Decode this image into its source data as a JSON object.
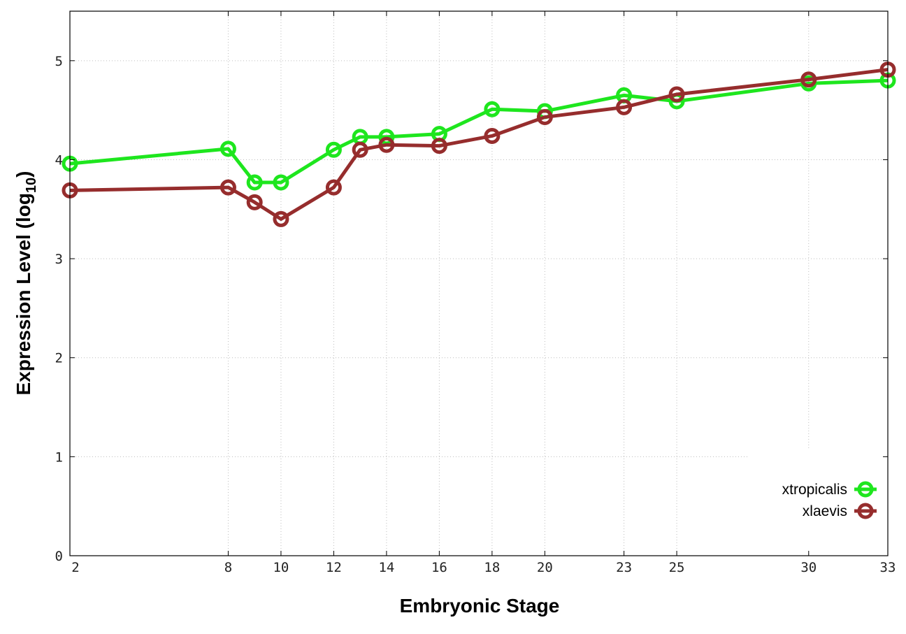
{
  "chart_data": {
    "type": "line",
    "title": "",
    "xlabel": "Embryonic Stage",
    "ylabel": {
      "main": "Expression Level (log",
      "sub": "10",
      "close": ")"
    },
    "xlim": [
      2,
      33
    ],
    "ylim": [
      0,
      5.5
    ],
    "x_ticks": [
      2,
      8,
      10,
      12,
      14,
      16,
      18,
      20,
      23,
      25,
      30,
      33
    ],
    "y_ticks": [
      0,
      1,
      2,
      3,
      4,
      5
    ],
    "grid": true,
    "legend_position": "bottom-right",
    "x": [
      2,
      8,
      9,
      10,
      12,
      13,
      14,
      16,
      18,
      20,
      23,
      25,
      30,
      33
    ],
    "series": [
      {
        "name": "xtropicalis",
        "color": "#1ee61e",
        "values": [
          3.96,
          4.11,
          3.77,
          3.77,
          4.1,
          4.23,
          4.23,
          4.26,
          4.51,
          4.49,
          4.65,
          4.59,
          4.77,
          4.8
        ]
      },
      {
        "name": "xlaevis",
        "color": "#962d2d",
        "values": [
          3.69,
          3.72,
          3.57,
          3.4,
          3.72,
          4.1,
          4.15,
          4.14,
          4.24,
          4.43,
          4.53,
          4.66,
          4.81,
          4.91
        ]
      }
    ]
  }
}
